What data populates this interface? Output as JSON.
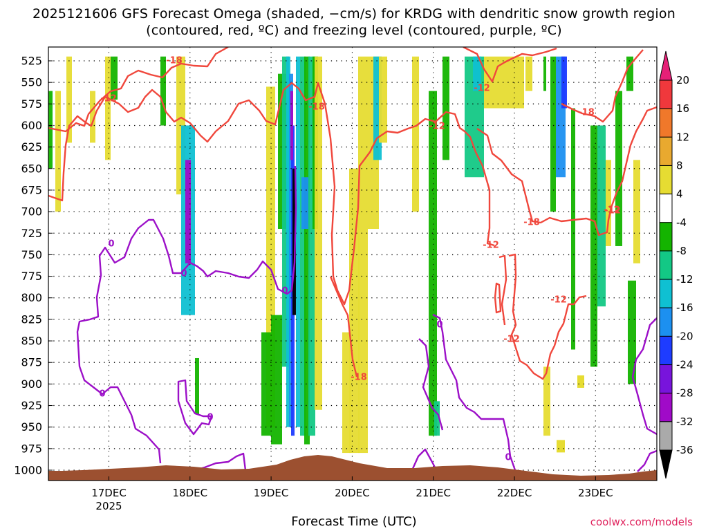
{
  "chart_data": {
    "type": "heatmap",
    "title": "2025121606 GFS Forecast Omega (shaded, −cm/s) for KRDG with dendritic snow growth region (contoured, red, ºC) and freezing level (contoured, purple, ºC)",
    "xlabel": "Forecast Time (UTC)",
    "ylabel": "",
    "source": "coolwx.com/models",
    "x_ticks": [
      {
        "day": "17DEC",
        "year": "2025"
      },
      {
        "day": "18DEC",
        "year": ""
      },
      {
        "day": "19DEC",
        "year": ""
      },
      {
        "day": "20DEC",
        "year": ""
      },
      {
        "day": "21DEC",
        "year": ""
      },
      {
        "day": "22DEC",
        "year": ""
      },
      {
        "day": "23DEC",
        "year": ""
      }
    ],
    "y_ticks": [
      "525",
      "550",
      "575",
      "600",
      "625",
      "650",
      "675",
      "700",
      "725",
      "750",
      "775",
      "800",
      "825",
      "850",
      "875",
      "900",
      "925",
      "950",
      "975",
      "1000"
    ],
    "ylim": [
      1000,
      510
    ],
    "colorbar": {
      "labels": [
        "20",
        "16",
        "12",
        "8",
        "4",
        "-4",
        "-8",
        "-12",
        "-16",
        "-20",
        "-24",
        "-28",
        "-32",
        "-36"
      ],
      "colors": [
        "#e62077",
        "#f0383c",
        "#f0782a",
        "#e9a92f",
        "#e6dc32",
        "#ffffff",
        "#14b400",
        "#13c885",
        "#0fc0d2",
        "#1c90f0",
        "#1e3cff",
        "#7814dc",
        "#a00ac8",
        "#aaaaaa",
        "#000000"
      ]
    },
    "contour_labels": {
      "red": [
        "-18",
        "-12",
        "-18",
        "-12",
        "-12",
        "-18",
        "-12",
        "-12",
        "-18",
        "-12",
        "-12",
        "-12",
        "-18"
      ],
      "purple": [
        "0",
        "0",
        "0",
        "0",
        "0",
        "0",
        "0"
      ]
    },
    "colors": {
      "red_contour": "#f0473c",
      "purple_contour": "#9c10c8",
      "terrain": "#9c5030"
    }
  }
}
